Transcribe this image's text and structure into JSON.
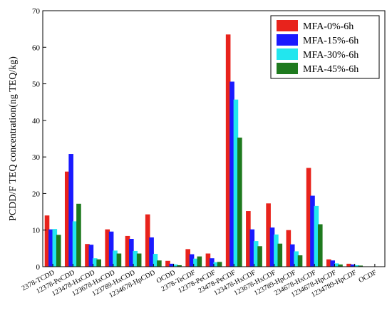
{
  "chart_data": {
    "type": "bar",
    "title": "",
    "xlabel": "",
    "ylabel": "PCDD/F TEQ concentration(ng TEQ/kg)",
    "ylim": [
      0,
      70
    ],
    "yticks": [
      0,
      10,
      20,
      30,
      40,
      50,
      60,
      70
    ],
    "grid": false,
    "legend_position": "top-right",
    "categories": [
      "2378-TCDD",
      "12378-PeCDD",
      "123478-HxCDD",
      "123678-HxCDD",
      "123789-HxCDD",
      "1234678-HpCDD",
      "OCDD",
      "2378-TeCDF",
      "12378-PeCDF",
      "23478-PeCDF",
      "123478-HxCDF",
      "123678-HxCDF",
      "123789-HpCDF",
      "234678-HxCDF",
      "1234678-HpCDF",
      "1234789-HpCDF",
      "OCDF"
    ],
    "series": [
      {
        "name": "MFA-0%-6h",
        "color": "#e8231c",
        "values": [
          14.0,
          26.0,
          6.2,
          10.2,
          8.4,
          14.3,
          1.6,
          4.8,
          3.6,
          63.5,
          15.2,
          17.3,
          10.0,
          27.0,
          2.0,
          0.8,
          0.0
        ]
      },
      {
        "name": "MFA-15%-6h",
        "color": "#1a1aff",
        "values": [
          10.2,
          30.8,
          6.0,
          9.6,
          7.6,
          8.0,
          0.8,
          3.4,
          2.3,
          50.6,
          10.2,
          10.7,
          6.1,
          19.4,
          1.7,
          0.6,
          0.0
        ]
      },
      {
        "name": "MFA-30%-6h",
        "color": "#22e6ee",
        "values": [
          10.3,
          12.4,
          2.3,
          4.4,
          4.3,
          3.5,
          0.6,
          2.2,
          1.2,
          45.7,
          7.0,
          8.8,
          4.2,
          16.6,
          0.9,
          0.4,
          0.0
        ]
      },
      {
        "name": "MFA-45%-6h",
        "color": "#1e7a1e",
        "values": [
          8.7,
          17.2,
          2.0,
          3.6,
          3.6,
          1.7,
          0.4,
          2.8,
          1.3,
          35.3,
          5.6,
          6.3,
          3.1,
          11.6,
          0.6,
          0.3,
          0.0
        ]
      }
    ]
  }
}
